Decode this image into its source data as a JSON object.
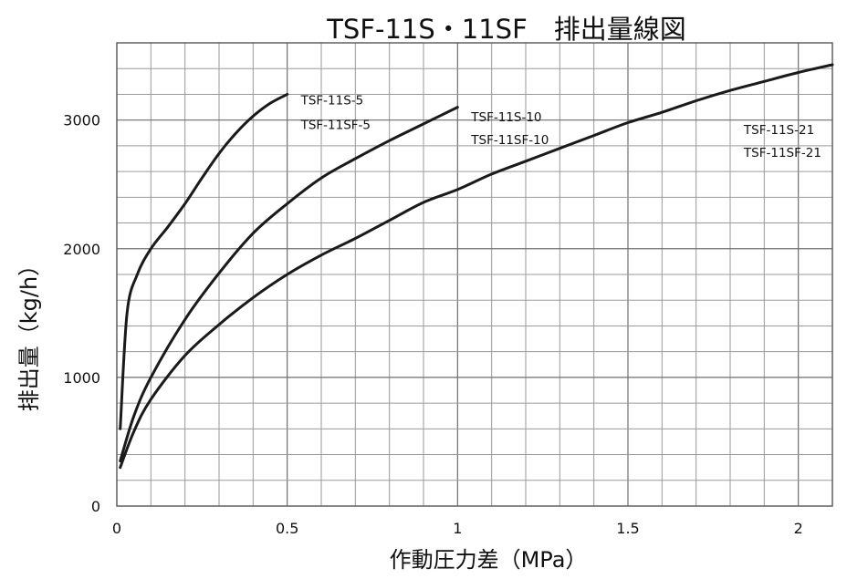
{
  "chart_data": {
    "type": "line",
    "title": "TSF-11S・11SF　排出量線図",
    "xlabel": "作動圧力差（MPa）",
    "ylabel": "排出量（kg/h）",
    "xlim": [
      0,
      2.1
    ],
    "ylim": [
      0,
      3600
    ],
    "xticks": [
      0,
      0.5,
      1,
      1.5,
      2
    ],
    "xtick_labels": [
      "0",
      "0.5",
      "1",
      "1.5",
      "2"
    ],
    "yticks": [
      0,
      1000,
      2000,
      3000
    ],
    "ytick_labels": [
      "0",
      "1000",
      "2000",
      "3000"
    ],
    "minor_x_step": 0.1,
    "minor_y_step": 200,
    "grid": true,
    "legend": "none (inline labels at curve ends)",
    "series": [
      {
        "labels": [
          "TSF-11S-5",
          "TSF-11SF-5"
        ],
        "x": [
          0.01,
          0.03,
          0.06,
          0.1,
          0.15,
          0.2,
          0.25,
          0.3,
          0.35,
          0.4,
          0.45,
          0.5
        ],
        "y": [
          600,
          1500,
          1800,
          2000,
          2170,
          2350,
          2550,
          2740,
          2900,
          3030,
          3130,
          3200
        ]
      },
      {
        "labels": [
          "TSF-11S-10",
          "TSF-11SF-10"
        ],
        "x": [
          0.01,
          0.05,
          0.1,
          0.2,
          0.3,
          0.4,
          0.5,
          0.6,
          0.7,
          0.8,
          0.9,
          1.0
        ],
        "y": [
          350,
          700,
          1000,
          1450,
          1810,
          2120,
          2350,
          2550,
          2700,
          2840,
          2970,
          3100
        ]
      },
      {
        "labels": [
          "TSF-11S-21",
          "TSF-11SF-21"
        ],
        "x": [
          0.01,
          0.05,
          0.1,
          0.2,
          0.3,
          0.4,
          0.5,
          0.6,
          0.7,
          0.8,
          0.9,
          1.0,
          1.1,
          1.2,
          1.3,
          1.4,
          1.5,
          1.6,
          1.7,
          1.8,
          1.9,
          2.0,
          2.1
        ],
        "y": [
          300,
          580,
          830,
          1170,
          1410,
          1620,
          1800,
          1950,
          2080,
          2220,
          2360,
          2460,
          2580,
          2680,
          2780,
          2880,
          2980,
          3060,
          3150,
          3230,
          3300,
          3370,
          3430
        ]
      }
    ]
  }
}
